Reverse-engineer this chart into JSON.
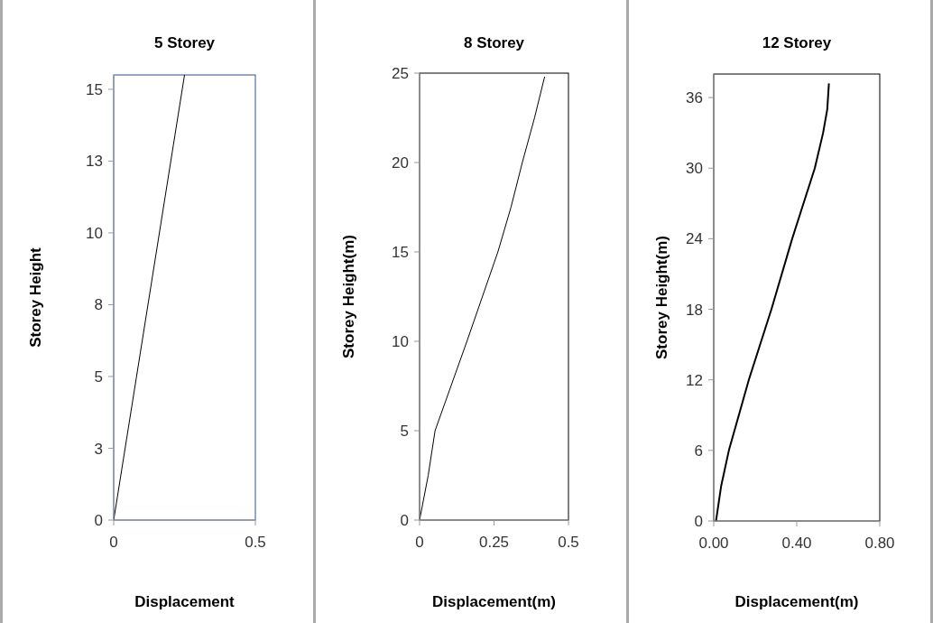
{
  "chart_data": [
    {
      "type": "line",
      "title": "5 Storey",
      "xlabel": "Displacement",
      "ylabel": "Storey Height",
      "x": [
        0,
        0.25
      ],
      "series": [
        {
          "color": "#000000",
          "values": [
            0,
            15.5
          ]
        }
      ],
      "xlim": [
        0,
        0.5
      ],
      "xticks": [
        0,
        0.5
      ],
      "ylim": [
        0,
        15.5
      ],
      "yticks": [
        0,
        {
          "value": 2.5,
          "label": "3"
        },
        5,
        {
          "value": 7.5,
          "label": "8"
        },
        10,
        {
          "value": 12.5,
          "label": "13"
        },
        15
      ]
    },
    {
      "type": "line",
      "title": "8 Storey",
      "xlabel": "Displacement(m)",
      "ylabel": "Storey Height(m)",
      "x": [
        0,
        0.029,
        0.052,
        0.159,
        0.263,
        0.307,
        0.345,
        0.386,
        0.42
      ],
      "series": [
        {
          "color": "#000000",
          "values": [
            0,
            2.5,
            5,
            10,
            15,
            17.5,
            20,
            22.5,
            24.8
          ]
        }
      ],
      "xlim": [
        0,
        0.5
      ],
      "xticks": [
        0,
        0.25,
        0.5
      ],
      "ylim": [
        0,
        25
      ],
      "yticks": [
        0,
        5,
        10,
        15,
        20,
        25
      ]
    },
    {
      "type": "line",
      "title": "12 Storey",
      "xlabel": "Displacement(m)",
      "ylabel": "Storey Height(m)",
      "x": [
        0.011,
        0.036,
        0.073,
        0.169,
        0.278,
        0.378,
        0.487,
        0.527,
        0.547,
        0.555
      ],
      "series": [
        {
          "color": "#000000",
          "values": [
            0,
            3,
            6,
            12,
            18,
            24,
            30,
            33,
            35,
            37.2
          ]
        }
      ],
      "xlim": [
        0,
        0.8
      ],
      "xticks": [
        {
          "value": 0,
          "label": "0.00"
        },
        {
          "value": 0.4,
          "label": "0.40"
        },
        {
          "value": 0.8,
          "label": "0.80"
        }
      ],
      "ylim": [
        0,
        38
      ],
      "yticks": [
        0,
        6,
        12,
        18,
        24,
        30,
        36
      ]
    }
  ]
}
